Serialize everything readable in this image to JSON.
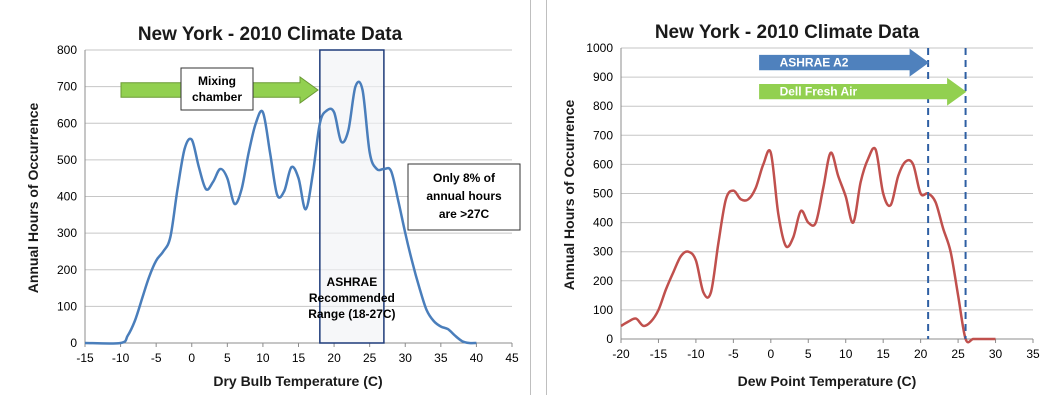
{
  "chart_data": [
    {
      "type": "line",
      "title": "New York - 2010 Climate Data",
      "xlabel": "Dry Bulb Temperature (C)",
      "ylabel": "Annual Hours of Occurrence",
      "xlim": [
        -15,
        45
      ],
      "ylim": [
        0,
        800
      ],
      "xticks": [
        "-15",
        "-10",
        "-5",
        "0",
        "5",
        "10",
        "15",
        "20",
        "25",
        "30",
        "35",
        "40",
        "45"
      ],
      "yticks": [
        "0",
        "100",
        "200",
        "300",
        "400",
        "500",
        "600",
        "700",
        "800"
      ],
      "grid": true,
      "line_color": "#4a7ebb",
      "series": [
        {
          "x": [
            -15,
            -10,
            -9,
            -8,
            -7,
            -6,
            -5,
            -4,
            -3,
            -2,
            -1,
            0,
            1,
            2,
            3,
            4,
            5,
            6,
            7,
            8,
            9,
            10,
            11,
            12,
            13,
            14,
            15,
            16,
            17,
            18,
            19,
            20,
            21,
            22,
            23,
            24,
            25,
            26,
            27,
            28,
            29,
            30,
            31,
            32,
            33,
            34,
            35,
            36,
            37,
            38,
            39,
            40
          ],
          "y": [
            0,
            0,
            20,
            60,
            120,
            180,
            225,
            250,
            290,
            420,
            530,
            555,
            480,
            420,
            440,
            475,
            450,
            380,
            420,
            520,
            600,
            630,
            520,
            405,
            415,
            480,
            450,
            365,
            460,
            600,
            635,
            630,
            550,
            580,
            700,
            690,
            520,
            475,
            475,
            470,
            390,
            300,
            220,
            150,
            90,
            60,
            45,
            38,
            20,
            5,
            0,
            0
          ]
        }
      ],
      "annotations": {
        "mixing_arrow": "Mixing\nchamber",
        "range_box": "ASHRAE\nRecommended\nRange (18-27C)",
        "range_x": [
          18,
          27
        ],
        "note": "Only 8% of\nannual hours\nare >27C"
      }
    },
    {
      "type": "line",
      "title": "New York - 2010 Climate Data",
      "xlabel": "Dew Point Temperature (C)",
      "ylabel": "Annual Hours of Occurrence",
      "xlim": [
        -20,
        35
      ],
      "ylim": [
        0,
        1000
      ],
      "xticks": [
        "-20",
        "-15",
        "-10",
        "-5",
        "0",
        "5",
        "10",
        "15",
        "20",
        "25",
        "30",
        "35"
      ],
      "yticks": [
        "0",
        "100",
        "200",
        "300",
        "400",
        "500",
        "600",
        "700",
        "800",
        "900",
        "1000"
      ],
      "grid": true,
      "line_color": "#c0504d",
      "series": [
        {
          "x": [
            -20,
            -19,
            -18,
            -17,
            -16,
            -15,
            -14,
            -13,
            -12,
            -11,
            -10,
            -9,
            -8,
            -7,
            -6,
            -5,
            -4,
            -3,
            -2,
            -1,
            0,
            1,
            2,
            3,
            4,
            5,
            6,
            7,
            8,
            9,
            10,
            11,
            12,
            13,
            14,
            15,
            16,
            17,
            18,
            19,
            20,
            21,
            22,
            23,
            24,
            25,
            26,
            27,
            28,
            29,
            30
          ],
          "y": [
            45,
            60,
            70,
            45,
            60,
            100,
            170,
            230,
            285,
            300,
            270,
            160,
            160,
            330,
            480,
            510,
            480,
            480,
            520,
            600,
            640,
            430,
            320,
            350,
            440,
            400,
            400,
            520,
            640,
            560,
            490,
            400,
            540,
            620,
            650,
            500,
            460,
            560,
            610,
            600,
            500,
            500,
            470,
            380,
            300,
            150,
            0,
            0,
            0,
            0,
            0
          ]
        }
      ],
      "vlines": [
        21,
        26
      ],
      "arrows": [
        {
          "label": "ASHRAE A2",
          "x_end": 21,
          "y": 950,
          "color": "#4f81bd"
        },
        {
          "label": "Dell Fresh Air",
          "x_end": 26,
          "y": 850,
          "color": "#92d050"
        }
      ]
    }
  ]
}
